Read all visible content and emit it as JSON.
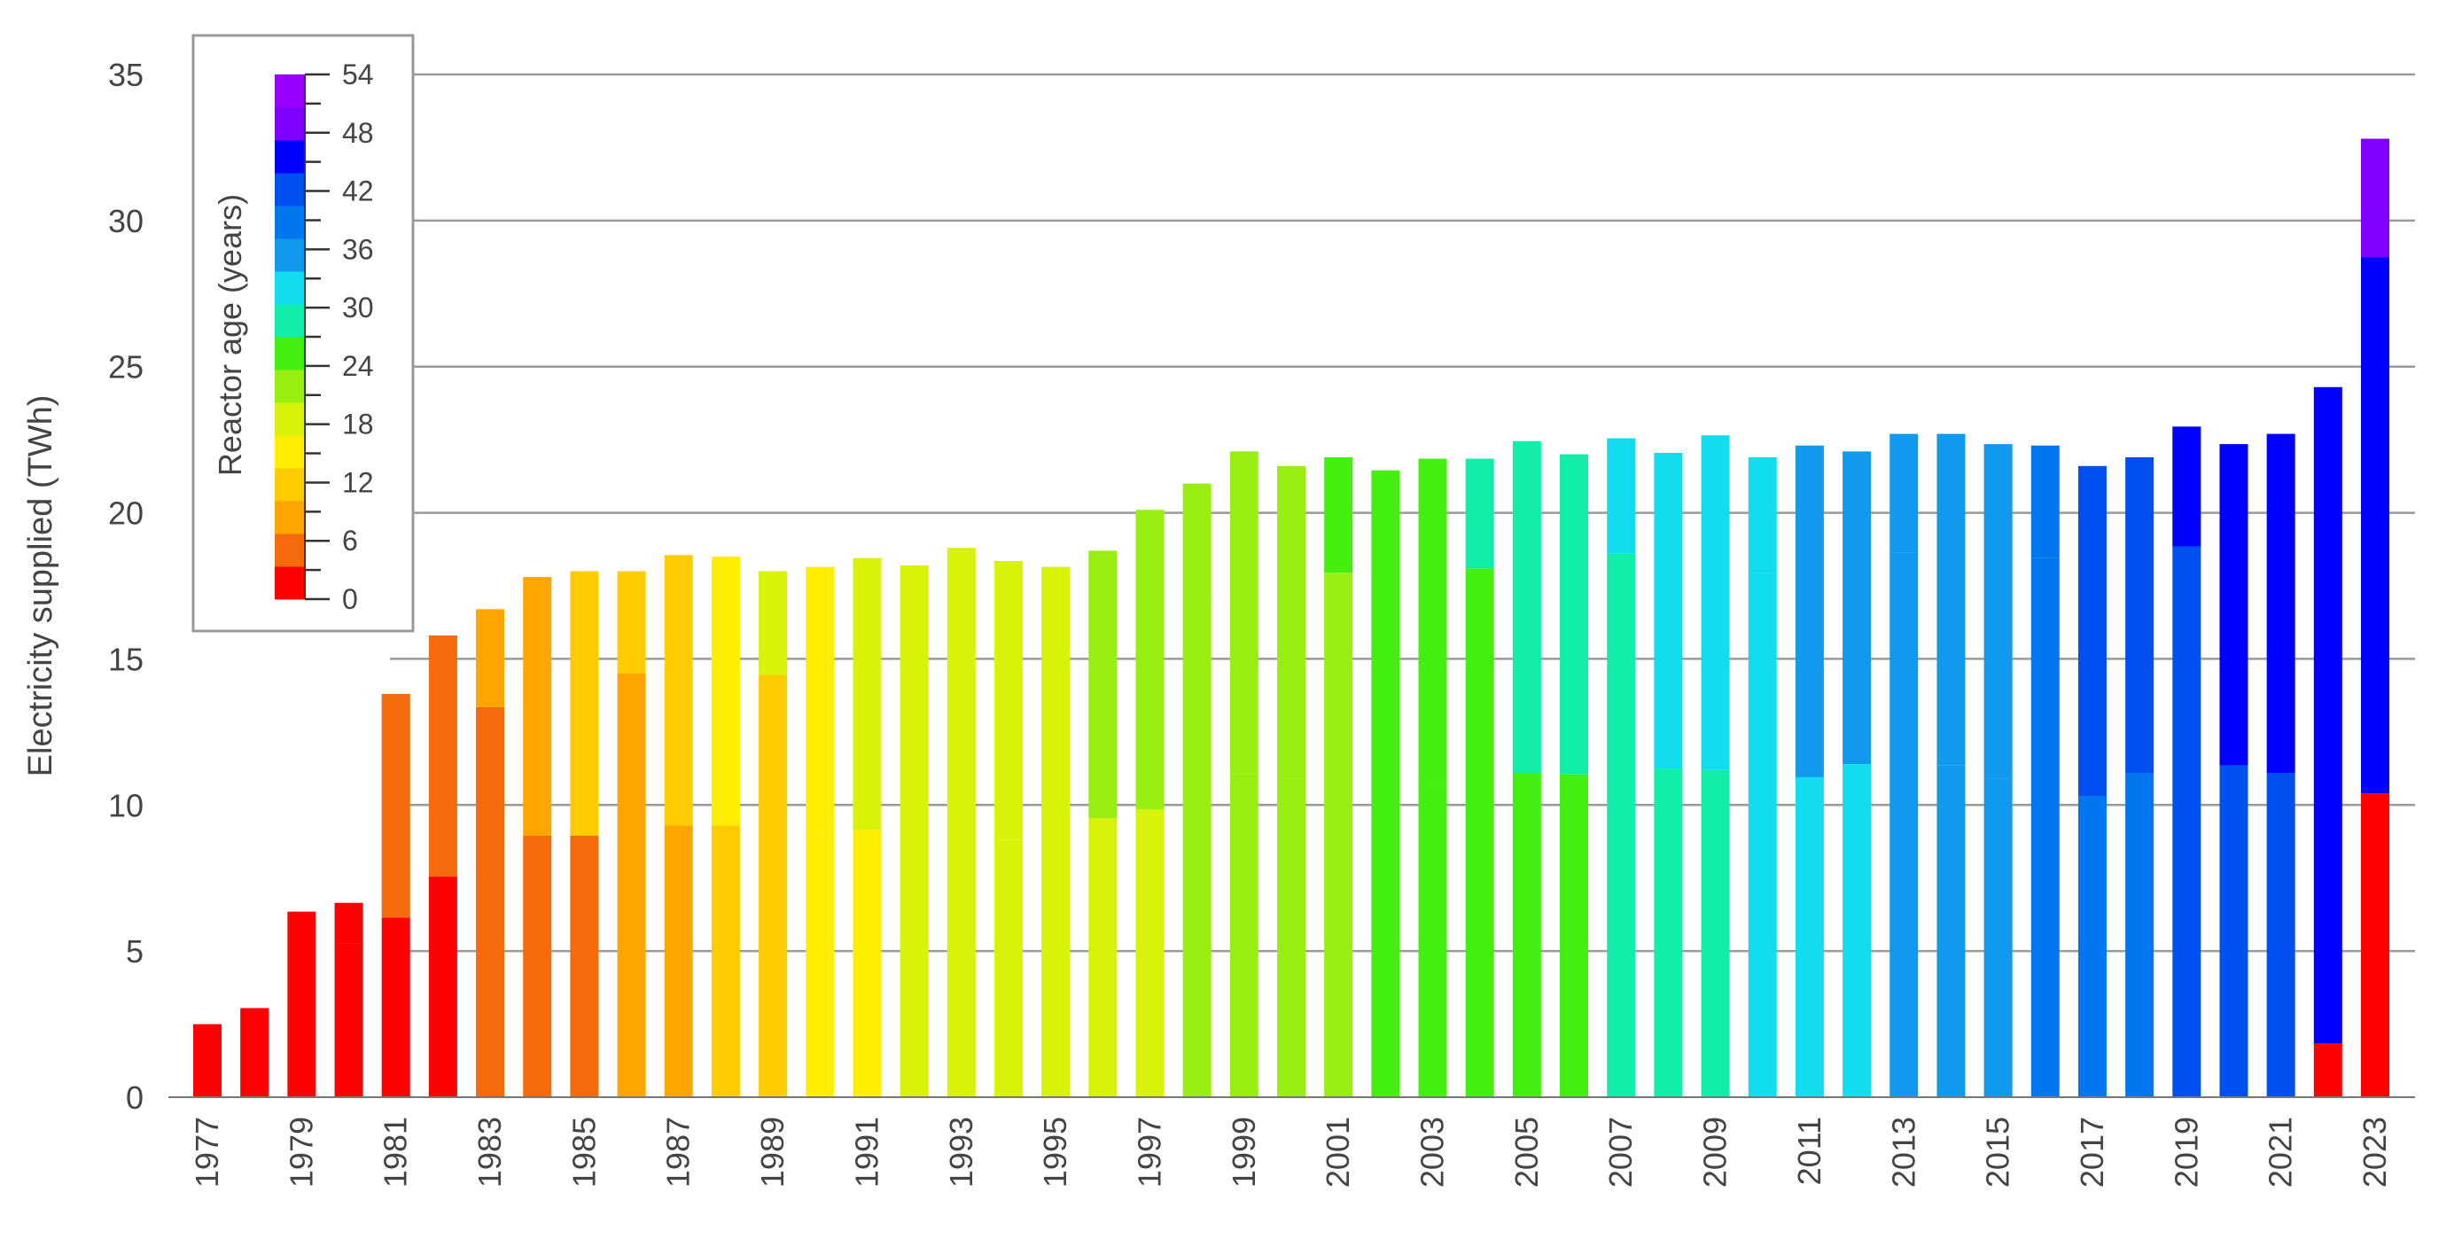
{
  "chart_data": {
    "type": "bar",
    "stacked": true,
    "ylabel": "Electricity supplied (TWh)",
    "xlabel": "",
    "ylim": [
      0,
      35
    ],
    "yticks": [
      0,
      5,
      10,
      15,
      20,
      25,
      30,
      35
    ],
    "grid": "horizontal",
    "legend_placement": "top-left",
    "colorbar": {
      "title": "Reactor age (years)",
      "ticks": [
        0,
        6,
        12,
        18,
        24,
        30,
        36,
        42,
        48,
        54
      ],
      "min": 0,
      "max": 54,
      "colors": [
        "#ff0000",
        "#f56a0a",
        "#ffa500",
        "#ffcc00",
        "#ffee00",
        "#d9f20a",
        "#99ee11",
        "#44ee11",
        "#11eeaa",
        "#11ddee",
        "#1199ee",
        "#0077ee",
        "#0050f0",
        "#0000ff",
        "#7f00ff",
        "#9900ff"
      ]
    },
    "categories": [
      "1977",
      "1978",
      "1979",
      "1980",
      "1981",
      "1982",
      "1983",
      "1984",
      "1985",
      "1986",
      "1987",
      "1988",
      "1989",
      "1990",
      "1991",
      "1992",
      "1993",
      "1994",
      "1995",
      "1996",
      "1997",
      "1998",
      "1999",
      "2000",
      "2001",
      "2002",
      "2003",
      "2004",
      "2005",
      "2006",
      "2007",
      "2008",
      "2009",
      "2010",
      "2011",
      "2012",
      "2013",
      "2014",
      "2015",
      "2016",
      "2017",
      "2018",
      "2019",
      "2020",
      "2021",
      "2022",
      "2023"
    ],
    "x_tick_labels": [
      "1977",
      "1979",
      "1981",
      "1983",
      "1985",
      "1987",
      "1989",
      "1991",
      "1993",
      "1995",
      "1997",
      "1999",
      "2001",
      "2003",
      "2005",
      "2007",
      "2009",
      "2011",
      "2013",
      "2015",
      "2017",
      "2019",
      "2021",
      "2023"
    ],
    "bars": [
      {
        "year": "1977",
        "segments": [
          {
            "value": 2.5,
            "age": 0
          }
        ]
      },
      {
        "year": "1978",
        "segments": [
          {
            "value": 3.05,
            "age": 1
          }
        ]
      },
      {
        "year": "1979",
        "segments": [
          {
            "value": 6.35,
            "age": 2
          }
        ]
      },
      {
        "year": "1980",
        "segments": [
          {
            "value": 5.25,
            "age": 3
          },
          {
            "value": 1.4,
            "age": 0
          }
        ]
      },
      {
        "year": "1981",
        "segments": [
          {
            "value": 6.15,
            "age": 0
          },
          {
            "value": 7.65,
            "age": 4
          }
        ]
      },
      {
        "year": "1982",
        "segments": [
          {
            "value": 7.55,
            "age": 1
          },
          {
            "value": 8.25,
            "age": 5
          }
        ]
      },
      {
        "year": "1983",
        "segments": [
          {
            "value": 13.35,
            "age": 4
          },
          {
            "value": 3.35,
            "age": 9
          }
        ]
      },
      {
        "year": "1984",
        "segments": [
          {
            "value": 8.95,
            "age": 5
          },
          {
            "value": 8.85,
            "age": 10
          }
        ]
      },
      {
        "year": "1985",
        "segments": [
          {
            "value": 8.95,
            "age": 6
          },
          {
            "value": 9.05,
            "age": 11
          }
        ]
      },
      {
        "year": "1986",
        "segments": [
          {
            "value": 14.5,
            "age": 10
          },
          {
            "value": 3.5,
            "age": 12
          }
        ]
      },
      {
        "year": "1987",
        "segments": [
          {
            "value": 9.3,
            "age": 10
          },
          {
            "value": 9.25,
            "age": 13
          }
        ]
      },
      {
        "year": "1988",
        "segments": [
          {
            "value": 9.3,
            "age": 11
          },
          {
            "value": 9.2,
            "age": 14
          }
        ]
      },
      {
        "year": "1989",
        "segments": [
          {
            "value": 14.45,
            "age": 13
          },
          {
            "value": 3.55,
            "age": 17
          }
        ]
      },
      {
        "year": "1990",
        "segments": [
          {
            "value": 9.0,
            "age": 14
          },
          {
            "value": 9.15,
            "age": 16
          }
        ]
      },
      {
        "year": "1991",
        "segments": [
          {
            "value": 9.15,
            "age": 14
          },
          {
            "value": 9.3,
            "age": 17
          }
        ]
      },
      {
        "year": "1992",
        "segments": [
          {
            "value": 18.2,
            "age": 17
          }
        ]
      },
      {
        "year": "1993",
        "segments": [
          {
            "value": 18.8,
            "age": 18
          }
        ]
      },
      {
        "year": "1994",
        "segments": [
          {
            "value": 8.8,
            "age": 18
          },
          {
            "value": 9.55,
            "age": 19
          }
        ]
      },
      {
        "year": "1995",
        "segments": [
          {
            "value": 14.8,
            "age": 19
          },
          {
            "value": 3.35,
            "age": 20
          }
        ]
      },
      {
        "year": "1996",
        "segments": [
          {
            "value": 9.55,
            "age": 20
          },
          {
            "value": 9.15,
            "age": 21
          }
        ]
      },
      {
        "year": "1997",
        "segments": [
          {
            "value": 9.85,
            "age": 20
          },
          {
            "value": 10.25,
            "age": 21
          }
        ]
      },
      {
        "year": "1998",
        "segments": [
          {
            "value": 17.15,
            "age": 21
          },
          {
            "value": 3.85,
            "age": 22
          }
        ]
      },
      {
        "year": "1999",
        "segments": [
          {
            "value": 11.05,
            "age": 22
          },
          {
            "value": 11.05,
            "age": 23
          }
        ]
      },
      {
        "year": "2000",
        "segments": [
          {
            "value": 10.9,
            "age": 22
          },
          {
            "value": 10.7,
            "age": 23
          }
        ]
      },
      {
        "year": "2001",
        "segments": [
          {
            "value": 17.95,
            "age": 23
          },
          {
            "value": 3.95,
            "age": 26
          }
        ]
      },
      {
        "year": "2002",
        "segments": [
          {
            "value": 10.6,
            "age": 24
          },
          {
            "value": 10.85,
            "age": 26
          }
        ]
      },
      {
        "year": "2003",
        "segments": [
          {
            "value": 10.75,
            "age": 24
          },
          {
            "value": 11.1,
            "age": 26
          }
        ]
      },
      {
        "year": "2004",
        "segments": [
          {
            "value": 18.1,
            "age": 26
          },
          {
            "value": 3.75,
            "age": 29
          }
        ]
      },
      {
        "year": "2005",
        "segments": [
          {
            "value": 11.1,
            "age": 26
          },
          {
            "value": 11.35,
            "age": 28
          }
        ]
      },
      {
        "year": "2006",
        "segments": [
          {
            "value": 11.05,
            "age": 26
          },
          {
            "value": 10.95,
            "age": 29
          }
        ]
      },
      {
        "year": "2007",
        "segments": [
          {
            "value": 18.6,
            "age": 29
          },
          {
            "value": 3.95,
            "age": 31
          }
        ]
      },
      {
        "year": "2008",
        "segments": [
          {
            "value": 11.25,
            "age": 29
          },
          {
            "value": 10.8,
            "age": 31
          }
        ]
      },
      {
        "year": "2009",
        "segments": [
          {
            "value": 11.2,
            "age": 30
          },
          {
            "value": 11.45,
            "age": 31
          }
        ]
      },
      {
        "year": "2010",
        "segments": [
          {
            "value": 17.95,
            "age": 31
          },
          {
            "value": 3.95,
            "age": 33
          }
        ]
      },
      {
        "year": "2011",
        "segments": [
          {
            "value": 10.95,
            "age": 33
          },
          {
            "value": 11.35,
            "age": 34
          }
        ]
      },
      {
        "year": "2012",
        "segments": [
          {
            "value": 11.4,
            "age": 33
          },
          {
            "value": 10.7,
            "age": 34
          }
        ]
      },
      {
        "year": "2013",
        "segments": [
          {
            "value": 18.65,
            "age": 34
          },
          {
            "value": 4.05,
            "age": 36
          }
        ]
      },
      {
        "year": "2014",
        "segments": [
          {
            "value": 11.35,
            "age": 35
          },
          {
            "value": 11.35,
            "age": 36
          }
        ]
      },
      {
        "year": "2015",
        "segments": [
          {
            "value": 10.9,
            "age": 35
          },
          {
            "value": 11.45,
            "age": 37
          }
        ]
      },
      {
        "year": "2016",
        "segments": [
          {
            "value": 18.45,
            "age": 38
          },
          {
            "value": 3.85,
            "age": 40
          }
        ]
      },
      {
        "year": "2017",
        "segments": [
          {
            "value": 10.3,
            "age": 40
          },
          {
            "value": 11.3,
            "age": 41
          }
        ]
      },
      {
        "year": "2018",
        "segments": [
          {
            "value": 11.1,
            "age": 40
          },
          {
            "value": 10.8,
            "age": 41
          }
        ]
      },
      {
        "year": "2019",
        "segments": [
          {
            "value": 18.85,
            "age": 42
          },
          {
            "value": 4.1,
            "age": 45
          }
        ]
      },
      {
        "year": "2020",
        "segments": [
          {
            "value": 11.35,
            "age": 42
          },
          {
            "value": 11.0,
            "age": 45
          }
        ]
      },
      {
        "year": "2021",
        "segments": [
          {
            "value": 11.1,
            "age": 43
          },
          {
            "value": 11.6,
            "age": 44
          }
        ]
      },
      {
        "year": "2022",
        "segments": [
          {
            "value": 1.85,
            "age": 0
          },
          {
            "value": 22.45,
            "age": 45
          }
        ]
      },
      {
        "year": "2023",
        "segments": [
          {
            "value": 10.4,
            "age": 1
          },
          {
            "value": 18.35,
            "age": 44
          },
          {
            "value": 4.05,
            "age": 48
          }
        ]
      }
    ]
  }
}
